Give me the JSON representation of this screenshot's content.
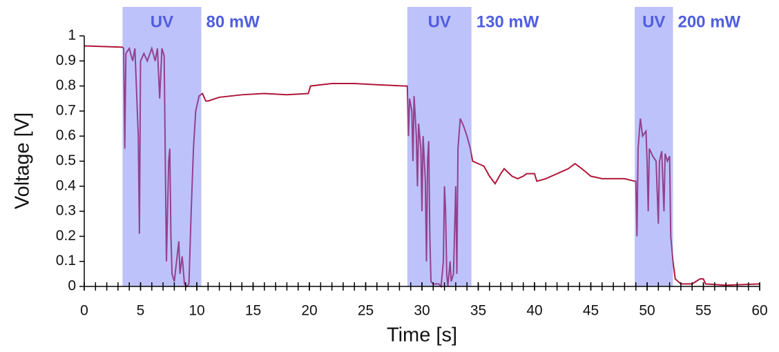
{
  "chart_data": {
    "type": "line",
    "xlabel": "Time [s]",
    "ylabel": "Voltage [V]",
    "xlim": [
      0,
      60
    ],
    "xticks": [
      0,
      5,
      10,
      15,
      20,
      25,
      30,
      35,
      40,
      45,
      50,
      55,
      60
    ],
    "xminorticks": [
      0,
      1,
      2,
      3,
      4,
      5,
      6,
      7,
      8,
      9,
      10,
      11,
      12,
      13,
      14,
      15,
      16,
      17,
      18,
      19,
      20,
      21,
      22,
      23,
      24,
      25,
      26,
      27,
      28,
      29,
      30,
      31,
      32,
      33,
      34,
      35,
      36,
      37,
      38,
      39,
      40,
      41,
      42,
      43,
      44,
      45,
      46,
      47,
      48,
      49,
      50,
      51,
      52,
      53,
      54,
      55,
      56,
      57,
      58,
      59,
      60
    ],
    "ylim": [
      0,
      1
    ],
    "yticks": [
      0,
      0.1,
      0.2,
      0.3,
      0.4,
      0.5,
      0.6,
      0.7,
      0.8,
      0.9,
      1
    ],
    "grid": false,
    "regions": [
      {
        "x": [
          3.4,
          10.4
        ],
        "label": "UV",
        "power": "80 mW"
      },
      {
        "x": [
          28.7,
          34.4
        ],
        "label": "UV",
        "power": "130 mW"
      },
      {
        "x": [
          48.9,
          52.3
        ],
        "label": "UV",
        "power": "200 mW"
      }
    ],
    "region_color": "#6f78f5",
    "annotation_color": "#4f5ee0",
    "series": [
      {
        "color": "#b0153a",
        "x": [
          0,
          3.4,
          3.5,
          3.6,
          3.7,
          4.0,
          4.3,
          4.5,
          4.8,
          4.9,
          5.0,
          5.3,
          5.6,
          6.0,
          6.3,
          6.5,
          6.7,
          6.9,
          7.1,
          7.2,
          7.3,
          7.5,
          7.6,
          7.7,
          7.8,
          8.0,
          8.2,
          8.4,
          8.5,
          8.7,
          8.9,
          9.1,
          9.3,
          9.5,
          9.7,
          9.9,
          10.2,
          10.5,
          10.8,
          11,
          12,
          14,
          16,
          18,
          19.9,
          20.1,
          22,
          24,
          26,
          28.5,
          28.7,
          28.8,
          28.9,
          29.1,
          29.2,
          29.3,
          29.5,
          29.6,
          29.7,
          29.9,
          30,
          30.1,
          30.3,
          30.4,
          30.5,
          30.6,
          30.7,
          30.8,
          31.0,
          31.5,
          31.7,
          31.9,
          32.0,
          32.1,
          32.2,
          32.3,
          32.5,
          32.6,
          32.8,
          33.0,
          33.1,
          33.2,
          33.4,
          33.7,
          34,
          34.3,
          34.5,
          35,
          35.5,
          36,
          36.5,
          37,
          37.3,
          38,
          38.5,
          39,
          39.3,
          40,
          40.2,
          41,
          42,
          43,
          43.6,
          44.2,
          45,
          46,
          48,
          48.9,
          49.0,
          49.1,
          49.2,
          49.4,
          49.6,
          49.9,
          50.0,
          50.1,
          50.2,
          50.5,
          50.8,
          51.0,
          51.1,
          51.3,
          51.5,
          51.6,
          51.8,
          52.0,
          52.1,
          52.3,
          52.5,
          53,
          54,
          54.7,
          55,
          55.2,
          57,
          60
        ],
        "values": [
          0.96,
          0.955,
          0.95,
          0.55,
          0.93,
          0.95,
          0.9,
          0.95,
          0.6,
          0.21,
          0.9,
          0.93,
          0.9,
          0.95,
          0.9,
          0.95,
          0.75,
          0.95,
          0.92,
          0.5,
          0.1,
          0.5,
          0.55,
          0.2,
          0.05,
          0.02,
          0.1,
          0.18,
          0.05,
          0.12,
          0.01,
          0,
          0.01,
          0.3,
          0.55,
          0.7,
          0.76,
          0.77,
          0.74,
          0.74,
          0.755,
          0.765,
          0.77,
          0.765,
          0.77,
          0.8,
          0.81,
          0.81,
          0.805,
          0.8,
          0.8,
          0.6,
          0.75,
          0.7,
          0.5,
          0.76,
          0.6,
          0.4,
          0.65,
          0.55,
          0.3,
          0.6,
          0.42,
          0.1,
          0.5,
          0.58,
          0.2,
          0.02,
          0.01,
          0.01,
          0,
          0.1,
          0.4,
          0.3,
          0.05,
          0,
          0.1,
          0.02,
          0.05,
          0.4,
          0.05,
          0.55,
          0.67,
          0.64,
          0.6,
          0.55,
          0.5,
          0.49,
          0.48,
          0.44,
          0.41,
          0.45,
          0.47,
          0.44,
          0.43,
          0.44,
          0.45,
          0.45,
          0.42,
          0.43,
          0.45,
          0.47,
          0.49,
          0.47,
          0.44,
          0.43,
          0.43,
          0.42,
          0.42,
          0.2,
          0.55,
          0.67,
          0.6,
          0.62,
          0.5,
          0.3,
          0.55,
          0.52,
          0.5,
          0.25,
          0.5,
          0.54,
          0.3,
          0.53,
          0.5,
          0.52,
          0.2,
          0.1,
          0.03,
          0.01,
          0.01,
          0.03,
          0.03,
          0.01,
          0.005,
          0.01
        ]
      }
    ]
  }
}
